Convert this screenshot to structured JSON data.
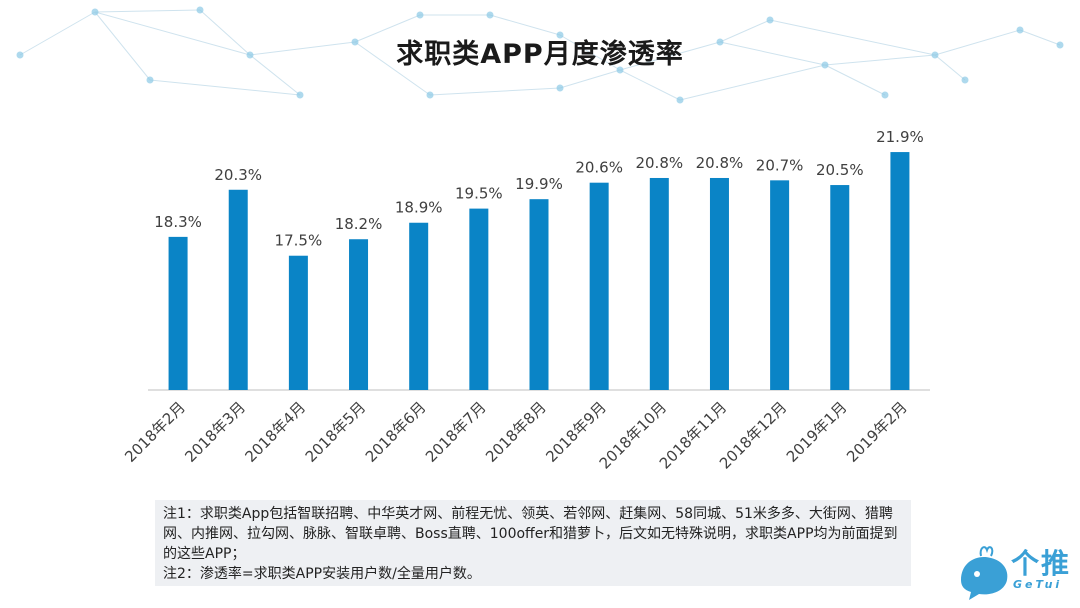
{
  "title": "求职类APP月度渗透率",
  "colors": {
    "bar": "#0a84c6",
    "axis": "#bfbfbf",
    "network": "#cfe3ee"
  },
  "chart_data": {
    "type": "bar",
    "categories": [
      "2018年2月",
      "2018年3月",
      "2018年4月",
      "2018年5月",
      "2018年6月",
      "2018年7月",
      "2018年8月",
      "2018年9月",
      "2018年10月",
      "2018年11月",
      "2018年12月",
      "2019年1月",
      "2019年2月"
    ],
    "values": [
      18.3,
      20.3,
      17.5,
      18.2,
      18.9,
      19.5,
      19.9,
      20.6,
      20.8,
      20.8,
      20.7,
      20.5,
      21.9
    ],
    "value_labels": [
      "18.3%",
      "20.3%",
      "17.5%",
      "18.2%",
      "18.9%",
      "19.5%",
      "19.9%",
      "20.6%",
      "20.8%",
      "20.8%",
      "20.7%",
      "20.5%",
      "21.9%"
    ],
    "unit": "%",
    "ylim": [
      11.8,
      22.2
    ],
    "grid": false,
    "legend": "none"
  },
  "notes": [
    "注1：求职类App包括智联招聘、中华英才网、前程无忧、领英、若邻网、赶集网、58同城、51米多多、大街网、猎聘网、内推网、拉勾网、脉脉、智联卓聘、Boss直聘、100offer和猎萝卜，后文如无特殊说明，求职类APP均为前面提到的这些APP；",
    "注2：渗透率=求职类APP安装用户数/全量用户数。"
  ],
  "logo": {
    "text": "个推",
    "sub": "GeTui"
  }
}
